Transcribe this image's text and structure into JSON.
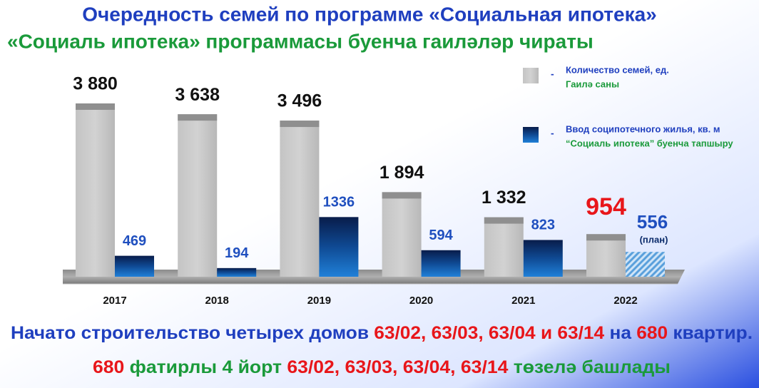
{
  "chart_data": {
    "type": "bar",
    "title": "Очередность семей по программе «Социальная ипотека»",
    "subtitle": "«Социаль ипотека» программасы буенча гаиләләр чираты",
    "categories": [
      "2017",
      "2018",
      "2019",
      "2020",
      "2021",
      "2022"
    ],
    "series": [
      {
        "name": "Количество семей, ед.",
        "name_alt": "Гаилә саны",
        "color": "#bdbdbd",
        "values": [
          3880,
          3638,
          3496,
          1894,
          1332,
          954
        ],
        "value_labels": [
          "3 880",
          "3 638",
          "3 496",
          "1 894",
          "1 332",
          "954"
        ]
      },
      {
        "name": "Ввод соципотечного жилья, кв. м",
        "name_alt": "“Социаль ипотека” буенча тапшыру",
        "color": "#0a2a6a",
        "values": [
          469,
          194,
          1336,
          594,
          823,
          556
        ]
      }
    ],
    "annotation": "(план)",
    "footnotes": [
      [
        {
          "text": "Начато строительство четырех домов ",
          "color": "#1f3fbf"
        },
        {
          "text": "63/02, 63/03, 63/04 и 63/14",
          "color": "#e8161a"
        },
        {
          "text": " на ",
          "color": "#1f3fbf"
        },
        {
          "text": "680",
          "color": "#e8161a"
        },
        {
          "text": " квартир.",
          "color": "#1f3fbf"
        }
      ],
      [
        {
          "text": "680",
          "color": "#e8161a"
        },
        {
          "text": " фатирлы 4 йорт ",
          "color": "#1a9a3a"
        },
        {
          "text": "63/02, 63/03, 63/04, 63/14",
          "color": "#e8161a"
        },
        {
          "text": " төзелә башлады",
          "color": "#1a9a3a"
        }
      ]
    ]
  }
}
